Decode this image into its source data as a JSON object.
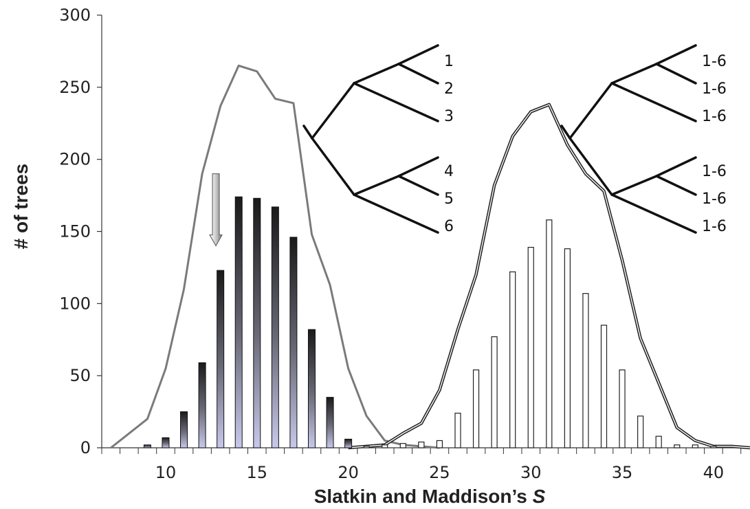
{
  "chart_data": {
    "type": "bar",
    "xlabel": "Slatkin and Maddison’s S",
    "xlabel_plain": "Slatkin and Maddison’s ",
    "xlabel_italic": "S",
    "ylabel": "# of trees",
    "xlim": [
      6.5,
      42
    ],
    "ylim": [
      0,
      300
    ],
    "yticks": [
      "0",
      "50",
      "100",
      "150",
      "200",
      "250",
      "300"
    ],
    "xticks": [
      "10",
      "15",
      "20",
      "25",
      "30",
      "35",
      "40"
    ],
    "grid": false,
    "series": [
      {
        "x": [
          9,
          10,
          11,
          12,
          13,
          14,
          15,
          16,
          17,
          18,
          19,
          20
        ],
        "values": [
          2,
          7,
          25,
          59,
          123,
          174,
          173,
          167,
          146,
          82,
          35,
          6
        ],
        "bar_style": "dark-gradient",
        "curve": {
          "x": [
            7,
            9,
            10,
            11,
            12,
            13,
            14,
            15,
            16,
            17,
            18,
            19,
            20,
            21,
            22,
            23,
            24,
            25
          ],
          "y": [
            0,
            20,
            55,
            110,
            190,
            237,
            265,
            261,
            242,
            239,
            148,
            113,
            55,
            22,
            5,
            2,
            1,
            0
          ],
          "color": "#7a7a7a"
        }
      },
      {
        "x": [
          21,
          22,
          23,
          24,
          25,
          26,
          27,
          28,
          29,
          30,
          31,
          32,
          33,
          34,
          35,
          36,
          37,
          38,
          39,
          40
        ],
        "values": [
          1,
          2,
          3,
          4,
          5,
          24,
          54,
          77,
          122,
          139,
          158,
          138,
          107,
          85,
          54,
          22,
          8,
          2,
          2,
          1
        ],
        "bar_style": "white",
        "curve": {
          "x": [
            20,
            22,
            23,
            24,
            25,
            26,
            27,
            28,
            29,
            30,
            31,
            32,
            33,
            34,
            35,
            36,
            37,
            38,
            39,
            40,
            41,
            42
          ],
          "y": [
            0,
            2,
            10,
            17,
            40,
            82,
            120,
            182,
            216,
            233,
            238,
            210,
            190,
            178,
            130,
            76,
            45,
            14,
            5,
            1,
            1,
            0
          ],
          "color": "#222222"
        }
      }
    ],
    "annotation": {
      "type": "arrow",
      "x": 12.75,
      "y_from": 190,
      "y_to": 140
    },
    "trees": [
      {
        "name": "tree-left",
        "tips": [
          "1",
          "2",
          "3",
          "4",
          "5",
          "6"
        ]
      },
      {
        "name": "tree-right",
        "tips": [
          "1-6",
          "1-6",
          "1-6",
          "1-6",
          "1-6",
          "1-6"
        ]
      }
    ]
  }
}
